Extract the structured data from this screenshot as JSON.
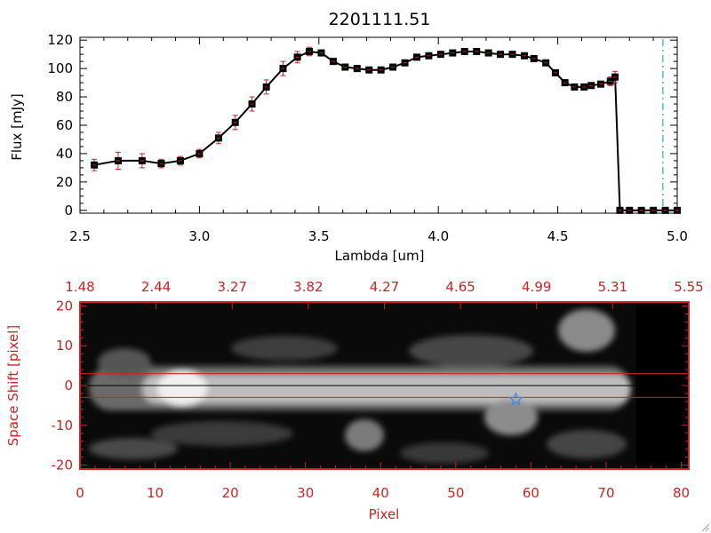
{
  "chart_data": [
    {
      "type": "line",
      "title": "2201111.51",
      "xlabel": "Lambda [um]",
      "ylabel": "Flux [mJy]",
      "xlim": [
        2.5,
        5.0
      ],
      "ylim": [
        0,
        120
      ],
      "xticks": [
        "2.5",
        "3.0",
        "3.5",
        "4.0",
        "4.5",
        "5.0"
      ],
      "yticks": [
        "0",
        "20",
        "40",
        "60",
        "80",
        "100",
        "120"
      ],
      "grid": false,
      "dashed_marker_x": 4.94,
      "colors": {
        "line": "#000000",
        "marker": "#000000",
        "errorbar": "#cc2222",
        "marker_line": "#00aa66"
      },
      "series": [
        {
          "x": [
            2.56,
            2.66,
            2.76,
            2.84,
            2.92,
            3.0,
            3.08,
            3.15,
            3.22,
            3.28,
            3.35,
            3.41,
            3.46,
            3.51,
            3.56,
            3.61,
            3.66,
            3.71,
            3.76,
            3.81,
            3.86,
            3.91,
            3.96,
            4.01,
            4.06,
            4.11,
            4.16,
            4.21,
            4.26,
            4.31,
            4.36,
            4.4,
            4.45,
            4.49,
            4.53,
            4.57,
            4.61,
            4.64,
            4.68,
            4.72,
            4.74,
            4.76,
            4.8,
            4.85,
            4.9,
            4.95,
            5.0
          ],
          "y": [
            32,
            35,
            35,
            33,
            35,
            40,
            51,
            62,
            75,
            87,
            100,
            108,
            112,
            111,
            105,
            101,
            100,
            99,
            99,
            101,
            104,
            108,
            109,
            110,
            111,
            112,
            112,
            111,
            110,
            110,
            109,
            107,
            104,
            97,
            90,
            87,
            87,
            88,
            89,
            91,
            94,
            0,
            0,
            0,
            0,
            0,
            0
          ],
          "err": [
            4,
            6,
            5,
            3,
            3,
            3,
            4,
            5,
            5,
            5,
            5,
            4,
            3,
            2,
            2,
            2,
            2,
            2,
            2,
            2,
            2,
            2,
            2,
            2,
            2,
            2,
            2,
            2,
            2,
            2,
            2,
            2,
            2,
            2,
            2,
            2,
            2,
            2,
            2,
            3,
            4,
            0,
            0,
            0,
            0,
            0,
            0
          ]
        }
      ]
    },
    {
      "type": "heatmap",
      "xlabel": "Pixel",
      "ylabel": "Space Shift [pixel]",
      "xlim": [
        0,
        81
      ],
      "ylim": [
        -21,
        21
      ],
      "xticks": [
        "0",
        "10",
        "20",
        "30",
        "40",
        "50",
        "60",
        "70",
        "80"
      ],
      "yticks": [
        "-20",
        "-10",
        "0",
        "10",
        "20"
      ],
      "top_axis_ticks": [
        "1.48",
        "2.44",
        "3.27",
        "3.82",
        "4.27",
        "4.65",
        "4.99",
        "5.31",
        "5.55"
      ],
      "horizontal_lines": [
        3,
        -3
      ],
      "center_line": 0,
      "star_marker": {
        "x": 58,
        "y": -3.5
      },
      "data_extent_x": 74,
      "colors": {
        "axis": "#cc2222",
        "star": "#3388ee",
        "center_line": "#000000"
      }
    }
  ]
}
